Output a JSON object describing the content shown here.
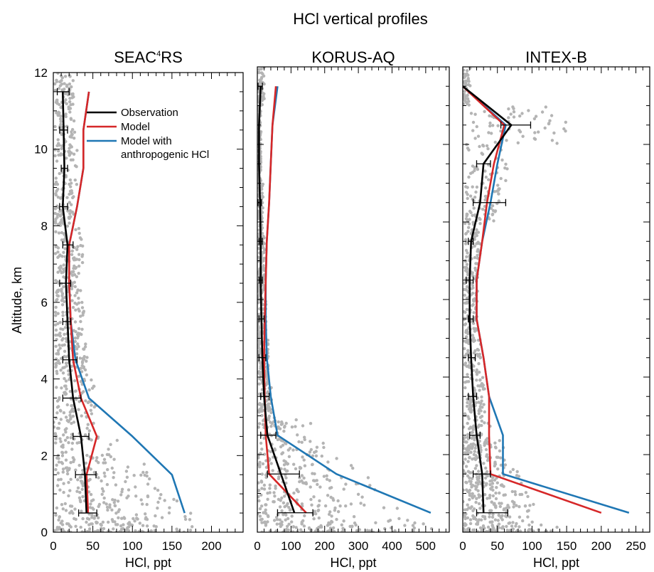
{
  "figure": {
    "title": "HCl vertical profiles",
    "ylabel": "Altitude, km",
    "colors": {
      "observation": "#000000",
      "model": "#d62728",
      "model_anthro": "#1f77b4",
      "scatter": "#b4b4b4",
      "axis": "#000000"
    }
  },
  "legend": {
    "location": "upper-right of first panel",
    "items": [
      {
        "label": "Observation",
        "color": "#000000"
      },
      {
        "label": "Model",
        "color": "#d62728"
      },
      {
        "label": "Model with",
        "label2": "anthropogenic HCl",
        "color": "#1f77b4"
      }
    ]
  },
  "chart_data": [
    {
      "type": "line",
      "title_main": "SEAC",
      "title_sup": "4",
      "title_rest": "RS",
      "xlabel": "HCl, ppt",
      "ylabel": "Altitude, km",
      "xlim": [
        0,
        240
      ],
      "ylim": [
        0,
        12
      ],
      "xticks": [
        0,
        50,
        100,
        150,
        200
      ],
      "yticks": [
        0,
        2,
        4,
        6,
        8,
        10,
        12
      ],
      "altitudes": [
        0.5,
        1.5,
        2.5,
        3.5,
        4.5,
        5.5,
        6.5,
        7.5,
        8.5,
        9.5,
        10.5,
        11.5
      ],
      "series": [
        {
          "name": "Observation",
          "color": "#000000",
          "x": [
            42,
            40,
            35,
            25,
            20,
            18,
            16,
            18,
            12,
            14,
            13,
            12
          ]
        },
        {
          "name": "Model",
          "color": "#d62728",
          "x": [
            44,
            42,
            55,
            35,
            25,
            22,
            20,
            20,
            30,
            38,
            38,
            45
          ]
        },
        {
          "name": "Model with anthropogenic HCl",
          "color": "#1f77b4",
          "x": [
            166,
            150,
            100,
            45,
            28,
            22,
            20,
            20,
            30,
            38,
            38,
            45
          ]
        }
      ],
      "error_bars": [
        {
          "y": 0.5,
          "lo": 32,
          "hi": 55
        },
        {
          "y": 1.5,
          "lo": 28,
          "hi": 54
        },
        {
          "y": 2.5,
          "lo": 25,
          "hi": 45
        },
        {
          "y": 3.5,
          "lo": 12,
          "hi": 35
        },
        {
          "y": 4.5,
          "lo": 12,
          "hi": 30
        },
        {
          "y": 5.5,
          "lo": 12,
          "hi": 22
        },
        {
          "y": 6.5,
          "lo": 8,
          "hi": 22
        },
        {
          "y": 7.5,
          "lo": 12,
          "hi": 25
        },
        {
          "y": 8.5,
          "lo": 8,
          "hi": 18
        },
        {
          "y": 9.5,
          "lo": 10,
          "hi": 18
        },
        {
          "y": 10.5,
          "lo": 8,
          "hi": 18
        },
        {
          "y": 11.5,
          "lo": 5,
          "hi": 20
        }
      ],
      "scatter_xmax": 230
    },
    {
      "type": "line",
      "title_main": "KORUS-AQ",
      "title_sup": "",
      "title_rest": "",
      "xlabel": "HCl, ppt",
      "ylabel": "",
      "xlim": [
        0,
        570
      ],
      "ylim": [
        0,
        12
      ],
      "xticks": [
        0,
        100,
        200,
        300,
        400,
        500
      ],
      "yticks": [
        0,
        2,
        4,
        6,
        8,
        10,
        12
      ],
      "altitudes": [
        0.5,
        1.5,
        2.5,
        3.5,
        4.5,
        5.5,
        6.5,
        7.5,
        8.5,
        9.5,
        10.5,
        11.5
      ],
      "series": [
        {
          "name": "Observation",
          "color": "#000000",
          "x": [
            110,
            70,
            30,
            20,
            15,
            12,
            10,
            10,
            8,
            5,
            5,
            10
          ]
        },
        {
          "name": "Model",
          "color": "#d62728",
          "x": [
            145,
            35,
            25,
            22,
            20,
            22,
            25,
            28,
            35,
            40,
            45,
            55
          ]
        },
        {
          "name": "Model with anthropogenic HCl",
          "color": "#1f77b4",
          "x": [
            515,
            235,
            60,
            40,
            28,
            25,
            25,
            28,
            35,
            40,
            45,
            60
          ]
        }
      ],
      "error_bars": [
        {
          "y": 0.5,
          "lo": 60,
          "hi": 165
        },
        {
          "y": 1.5,
          "lo": 30,
          "hi": 125
        },
        {
          "y": 2.5,
          "lo": 10,
          "hi": 55
        },
        {
          "y": 3.5,
          "lo": 10,
          "hi": 35
        },
        {
          "y": 4.5,
          "lo": 5,
          "hi": 25
        },
        {
          "y": 5.5,
          "lo": 5,
          "hi": 20
        },
        {
          "y": 6.5,
          "lo": 5,
          "hi": 15
        },
        {
          "y": 7.5,
          "lo": 5,
          "hi": 15
        },
        {
          "y": 8.5,
          "lo": 2,
          "hi": 12
        },
        {
          "y": 11.5,
          "lo": 2,
          "hi": 15
        }
      ],
      "scatter_xmax": 560
    },
    {
      "type": "line",
      "title_main": "INTEX-B",
      "title_sup": "",
      "title_rest": "",
      "xlabel": "HCl, ppt",
      "ylabel": "",
      "xlim": [
        0,
        270
      ],
      "ylim": [
        0,
        12
      ],
      "xticks": [
        0,
        50,
        100,
        150,
        200,
        250
      ],
      "yticks": [
        0,
        2,
        4,
        6,
        8,
        10,
        12
      ],
      "altitudes": [
        0.5,
        1.5,
        2.5,
        3.5,
        4.5,
        5.5,
        6.5,
        7.5,
        8.5,
        9.5,
        10.5,
        11.5
      ],
      "series": [
        {
          "name": "Observation",
          "color": "#000000",
          "x": [
            30,
            28,
            20,
            15,
            12,
            10,
            10,
            12,
            25,
            30,
            70,
            0
          ]
        },
        {
          "name": "Model",
          "color": "#d62728",
          "x": [
            200,
            40,
            38,
            38,
            30,
            20,
            20,
            28,
            35,
            45,
            60,
            0
          ]
        },
        {
          "name": "Model with anthropogenic HCl",
          "color": "#1f77b4",
          "x": [
            240,
            58,
            58,
            38,
            30,
            20,
            20,
            28,
            40,
            50,
            62,
            0
          ]
        }
      ],
      "error_bars": [
        {
          "y": 0.5,
          "lo": 20,
          "hi": 65
        },
        {
          "y": 1.5,
          "lo": 15,
          "hi": 40
        },
        {
          "y": 2.5,
          "lo": 10,
          "hi": 25
        },
        {
          "y": 3.5,
          "lo": 8,
          "hi": 20
        },
        {
          "y": 4.5,
          "lo": 8,
          "hi": 18
        },
        {
          "y": 5.5,
          "lo": 8,
          "hi": 15
        },
        {
          "y": 6.5,
          "lo": 5,
          "hi": 15
        },
        {
          "y": 7.5,
          "lo": 8,
          "hi": 15
        },
        {
          "y": 8.5,
          "lo": 15,
          "hi": 62
        },
        {
          "y": 9.5,
          "lo": 20,
          "hi": 40
        },
        {
          "y": 10.5,
          "lo": 55,
          "hi": 98
        }
      ],
      "scatter_xmax": 150
    }
  ]
}
